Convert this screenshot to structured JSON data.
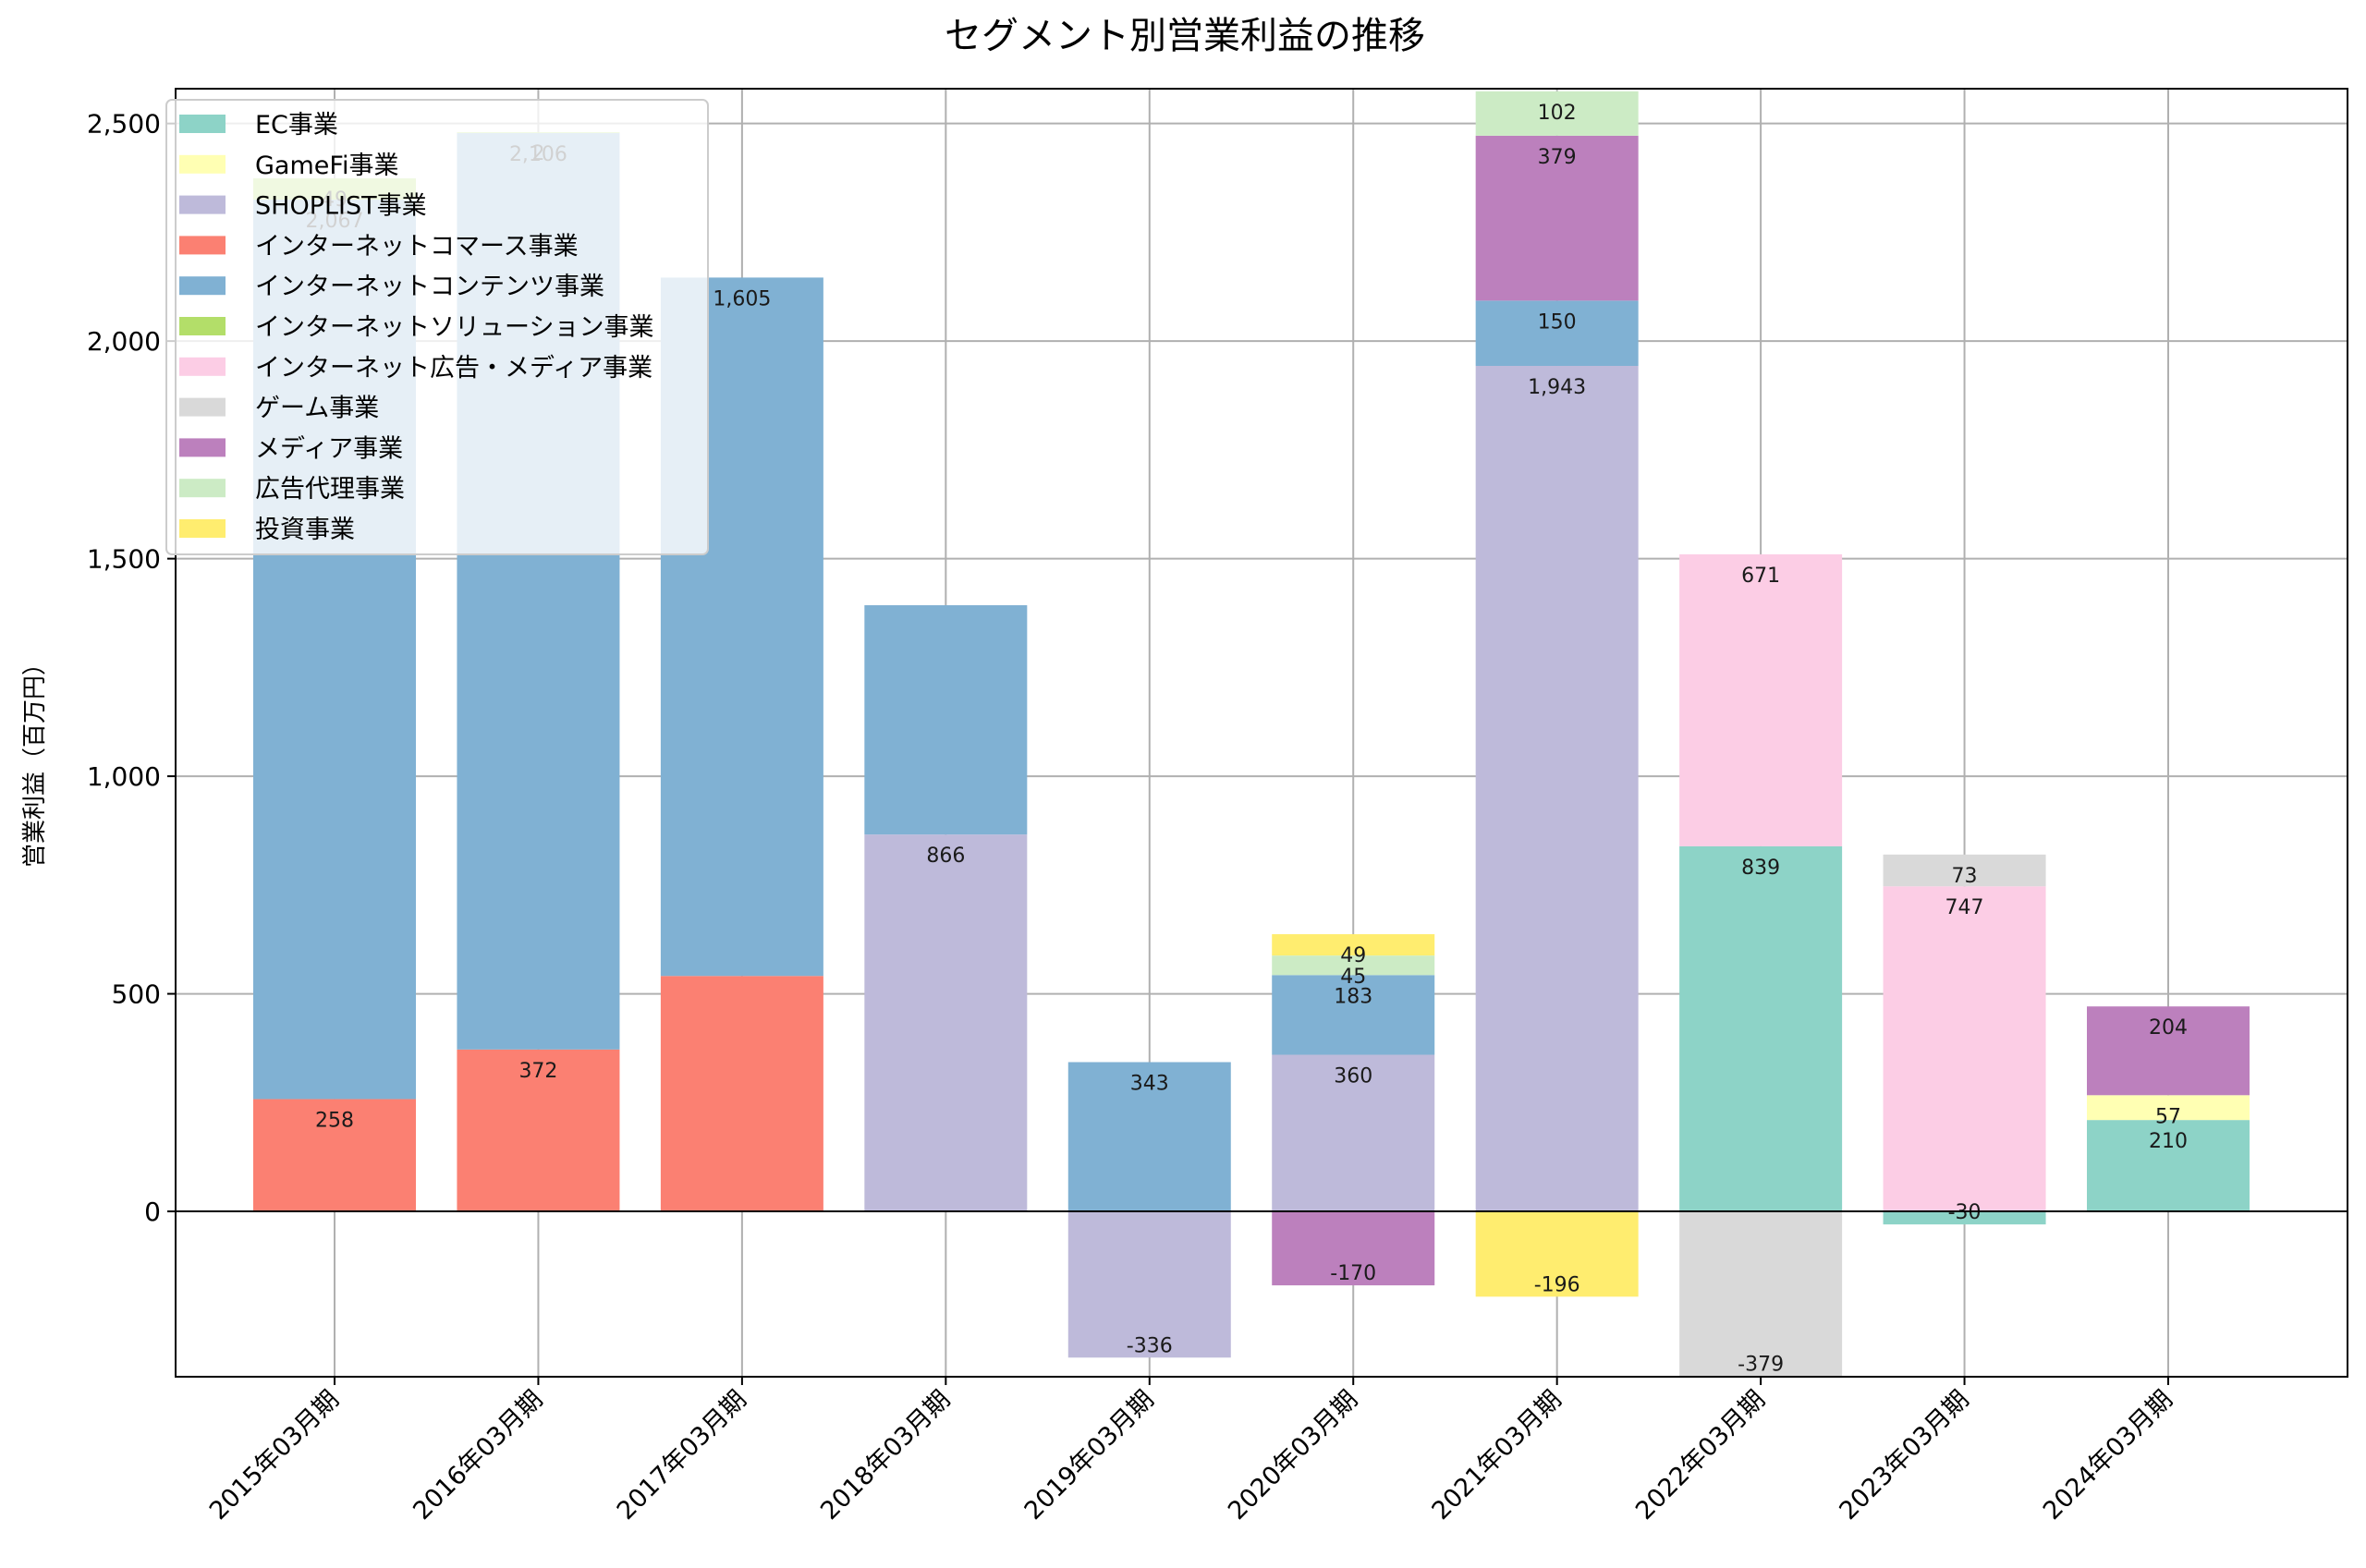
{
  "chart_data": {
    "type": "bar",
    "stacked": true,
    "title": "セグメント別営業利益の推移",
    "xlabel": "",
    "ylabel": "営業利益（百万円）",
    "ylim": [
      -380,
      2580
    ],
    "yticks": [
      0,
      500,
      1000,
      1500,
      2000,
      2500
    ],
    "ytick_labels": [
      "0",
      "500",
      "1,000",
      "1,500",
      "2,000",
      "2,500"
    ],
    "grid": true,
    "legend_position": "top-left",
    "categories": [
      "2015年03月期",
      "2016年03月期",
      "2017年03月期",
      "2018年03月期",
      "2019年03月期",
      "2020年03月期",
      "2021年03月期",
      "2022年03月期",
      "2023年03月期",
      "2024年03月期"
    ],
    "series": [
      {
        "name": "EC事業",
        "color": "#8dd3c7",
        "values": [
          null,
          null,
          null,
          null,
          null,
          null,
          null,
          839,
          -30,
          210
        ]
      },
      {
        "name": "GameFi事業",
        "color": "#ffffb3",
        "values": [
          null,
          null,
          null,
          null,
          null,
          null,
          null,
          null,
          null,
          57
        ]
      },
      {
        "name": "SHOPLIST事業",
        "color": "#bebada",
        "values": [
          null,
          null,
          null,
          866,
          -336,
          360,
          1943,
          null,
          null,
          null
        ]
      },
      {
        "name": "インターネットコマース事業",
        "color": "#fb8072",
        "values": [
          258,
          372,
          541,
          null,
          null,
          null,
          null,
          null,
          null,
          null
        ]
      },
      {
        "name": "インターネットコンテンツ事業",
        "color": "#80b1d3",
        "values": [
          2067,
          2106,
          1605,
          527,
          343,
          183,
          150,
          null,
          null,
          null
        ]
      },
      {
        "name": "インターネットソリューション事業",
        "color": "#b3de69",
        "values": [
          49,
          2,
          null,
          null,
          null,
          null,
          null,
          null,
          null,
          null
        ]
      },
      {
        "name": "インターネット広告・メディア事業",
        "color": "#fccde5",
        "values": [
          null,
          null,
          null,
          null,
          null,
          null,
          null,
          671,
          747,
          null
        ]
      },
      {
        "name": "ゲーム事業",
        "color": "#d9d9d9",
        "values": [
          null,
          null,
          null,
          null,
          null,
          null,
          null,
          -379,
          73,
          null
        ]
      },
      {
        "name": "メディア事業",
        "color": "#bc80bd",
        "values": [
          null,
          null,
          null,
          null,
          null,
          -170,
          379,
          null,
          null,
          204
        ]
      },
      {
        "name": "広告代理事業",
        "color": "#ccebc5",
        "values": [
          null,
          null,
          null,
          null,
          null,
          45,
          102,
          null,
          null,
          null
        ]
      },
      {
        "name": "投資事業",
        "color": "#ffed6f",
        "values": [
          null,
          null,
          null,
          null,
          null,
          49,
          -196,
          null,
          null,
          null
        ]
      }
    ],
    "labeled": [
      [
        0,
        3
      ],
      [
        0,
        4
      ],
      [
        0,
        5
      ],
      [
        1,
        3
      ],
      [
        1,
        4
      ],
      [
        1,
        5
      ],
      [
        2,
        4
      ],
      [
        3,
        2
      ],
      [
        4,
        2
      ],
      [
        4,
        4
      ],
      [
        5,
        2
      ],
      [
        5,
        4
      ],
      [
        5,
        8
      ],
      [
        5,
        9
      ],
      [
        5,
        10
      ],
      [
        6,
        2
      ],
      [
        6,
        4
      ],
      [
        6,
        8
      ],
      [
        6,
        9
      ],
      [
        6,
        10
      ],
      [
        7,
        0
      ],
      [
        7,
        6
      ],
      [
        7,
        7
      ],
      [
        8,
        0
      ],
      [
        8,
        6
      ],
      [
        8,
        7
      ],
      [
        9,
        0
      ],
      [
        9,
        1
      ],
      [
        9,
        8
      ]
    ]
  }
}
